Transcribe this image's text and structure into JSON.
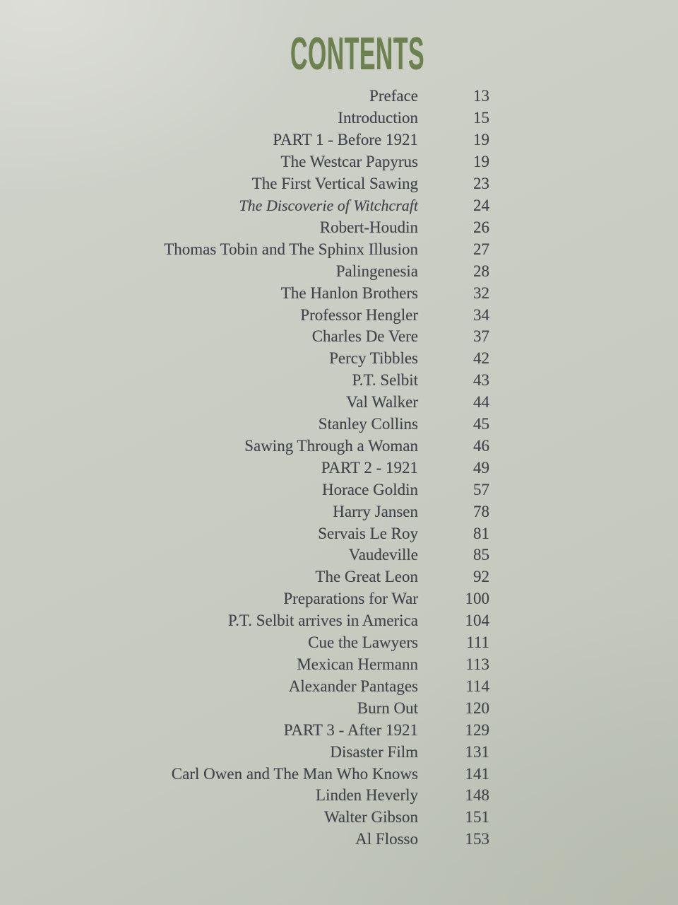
{
  "page": {
    "title": "CONTENTS",
    "title_color": "#6d8050",
    "paper_color": "#c9cdc3",
    "text_color": "#3f444c"
  },
  "toc": {
    "entries": [
      {
        "label": "Preface",
        "page": "13"
      },
      {
        "label": "Introduction",
        "page": "15"
      },
      {
        "label": "PART 1 - Before 1921",
        "page": "19"
      },
      {
        "label": "The Westcar Papyrus",
        "page": "19"
      },
      {
        "label": "The First Vertical Sawing",
        "page": "23"
      },
      {
        "label": "The Discoverie of Witchcraft",
        "page": "24",
        "italic": true
      },
      {
        "label": "Robert-Houdin",
        "page": "26"
      },
      {
        "label": "Thomas Tobin and The Sphinx Illusion",
        "page": "27"
      },
      {
        "label": "Palingenesia",
        "page": "28"
      },
      {
        "label": "The Hanlon Brothers",
        "page": "32"
      },
      {
        "label": "Professor Hengler",
        "page": "34"
      },
      {
        "label": "Charles De Vere",
        "page": "37"
      },
      {
        "label": "Percy Tibbles",
        "page": "42"
      },
      {
        "label": "P.T. Selbit",
        "page": "43"
      },
      {
        "label": "Val Walker",
        "page": "44"
      },
      {
        "label": "Stanley Collins",
        "page": "45"
      },
      {
        "label": "Sawing Through a Woman",
        "page": "46"
      },
      {
        "label": "PART 2 - 1921",
        "page": "49"
      },
      {
        "label": "Horace Goldin",
        "page": "57"
      },
      {
        "label": "Harry Jansen",
        "page": "78"
      },
      {
        "label": "Servais Le Roy",
        "page": "81"
      },
      {
        "label": "Vaudeville",
        "page": "85"
      },
      {
        "label": "The Great Leon",
        "page": "92"
      },
      {
        "label": "Preparations for War",
        "page": "100"
      },
      {
        "label": "P.T. Selbit arrives in America",
        "page": "104"
      },
      {
        "label": "Cue the Lawyers",
        "page": "111"
      },
      {
        "label": "Mexican Hermann",
        "page": "113"
      },
      {
        "label": "Alexander Pantages",
        "page": "114"
      },
      {
        "label": "Burn Out",
        "page": "120"
      },
      {
        "label": "PART 3 - After 1921",
        "page": "129"
      },
      {
        "label": "Disaster Film",
        "page": "131"
      },
      {
        "label": "Carl Owen and The Man Who Knows",
        "page": "141"
      },
      {
        "label": "Linden Heverly",
        "page": "148"
      },
      {
        "label": "Walter Gibson",
        "page": "151"
      },
      {
        "label": "Al Flosso",
        "page": "153"
      }
    ]
  }
}
